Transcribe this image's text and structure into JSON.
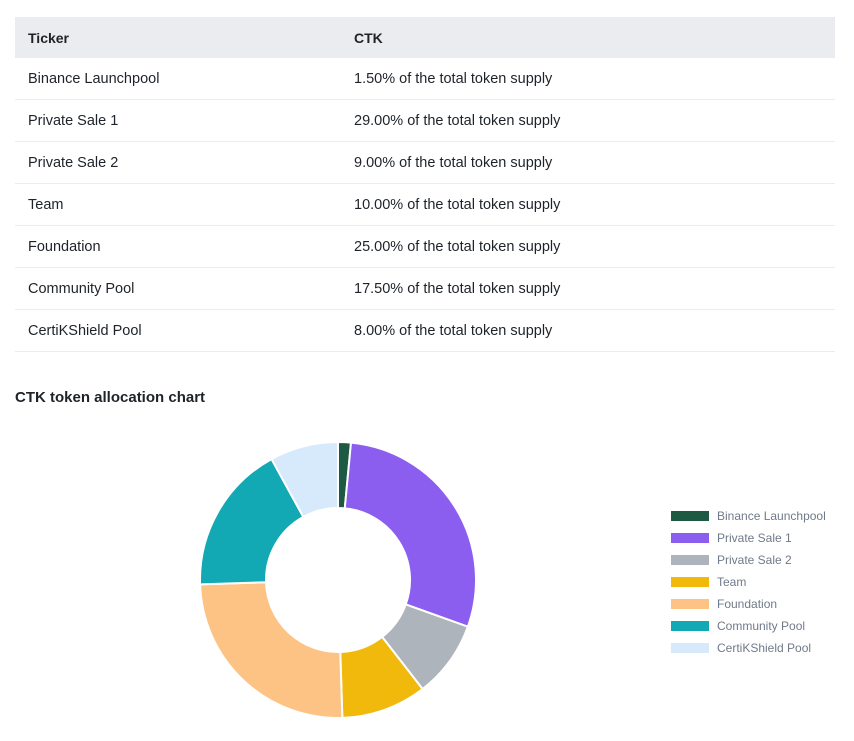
{
  "table": {
    "headers": [
      "Ticker",
      "CTK"
    ],
    "rows": [
      [
        "Binance Launchpool",
        "1.50% of the total token supply"
      ],
      [
        "Private Sale 1",
        "29.00% of the total token supply"
      ],
      [
        "Private Sale 2",
        "9.00% of the total token supply"
      ],
      [
        "Team",
        "10.00% of the total token supply"
      ],
      [
        "Foundation",
        "25.00% of the total token supply"
      ],
      [
        "Community Pool",
        "17.50% of the total token supply"
      ],
      [
        "CertiKShield Pool",
        "8.00% of the total token supply"
      ]
    ]
  },
  "chart_data": {
    "type": "pie",
    "title": "CTK token allocation chart",
    "categories": [
      "Binance Launchpool",
      "Private Sale 1",
      "Private Sale 2",
      "Team",
      "Foundation",
      "Community Pool",
      "CertiKShield Pool"
    ],
    "values": [
      1.5,
      29.0,
      9.0,
      10.0,
      25.0,
      17.5,
      8.0
    ],
    "colors": [
      "#1e5a43",
      "#8c5ef0",
      "#aeb4bc",
      "#f0b90b",
      "#fdc384",
      "#12a9b4",
      "#d6eafb"
    ],
    "donut": true,
    "legend_position": "right"
  }
}
